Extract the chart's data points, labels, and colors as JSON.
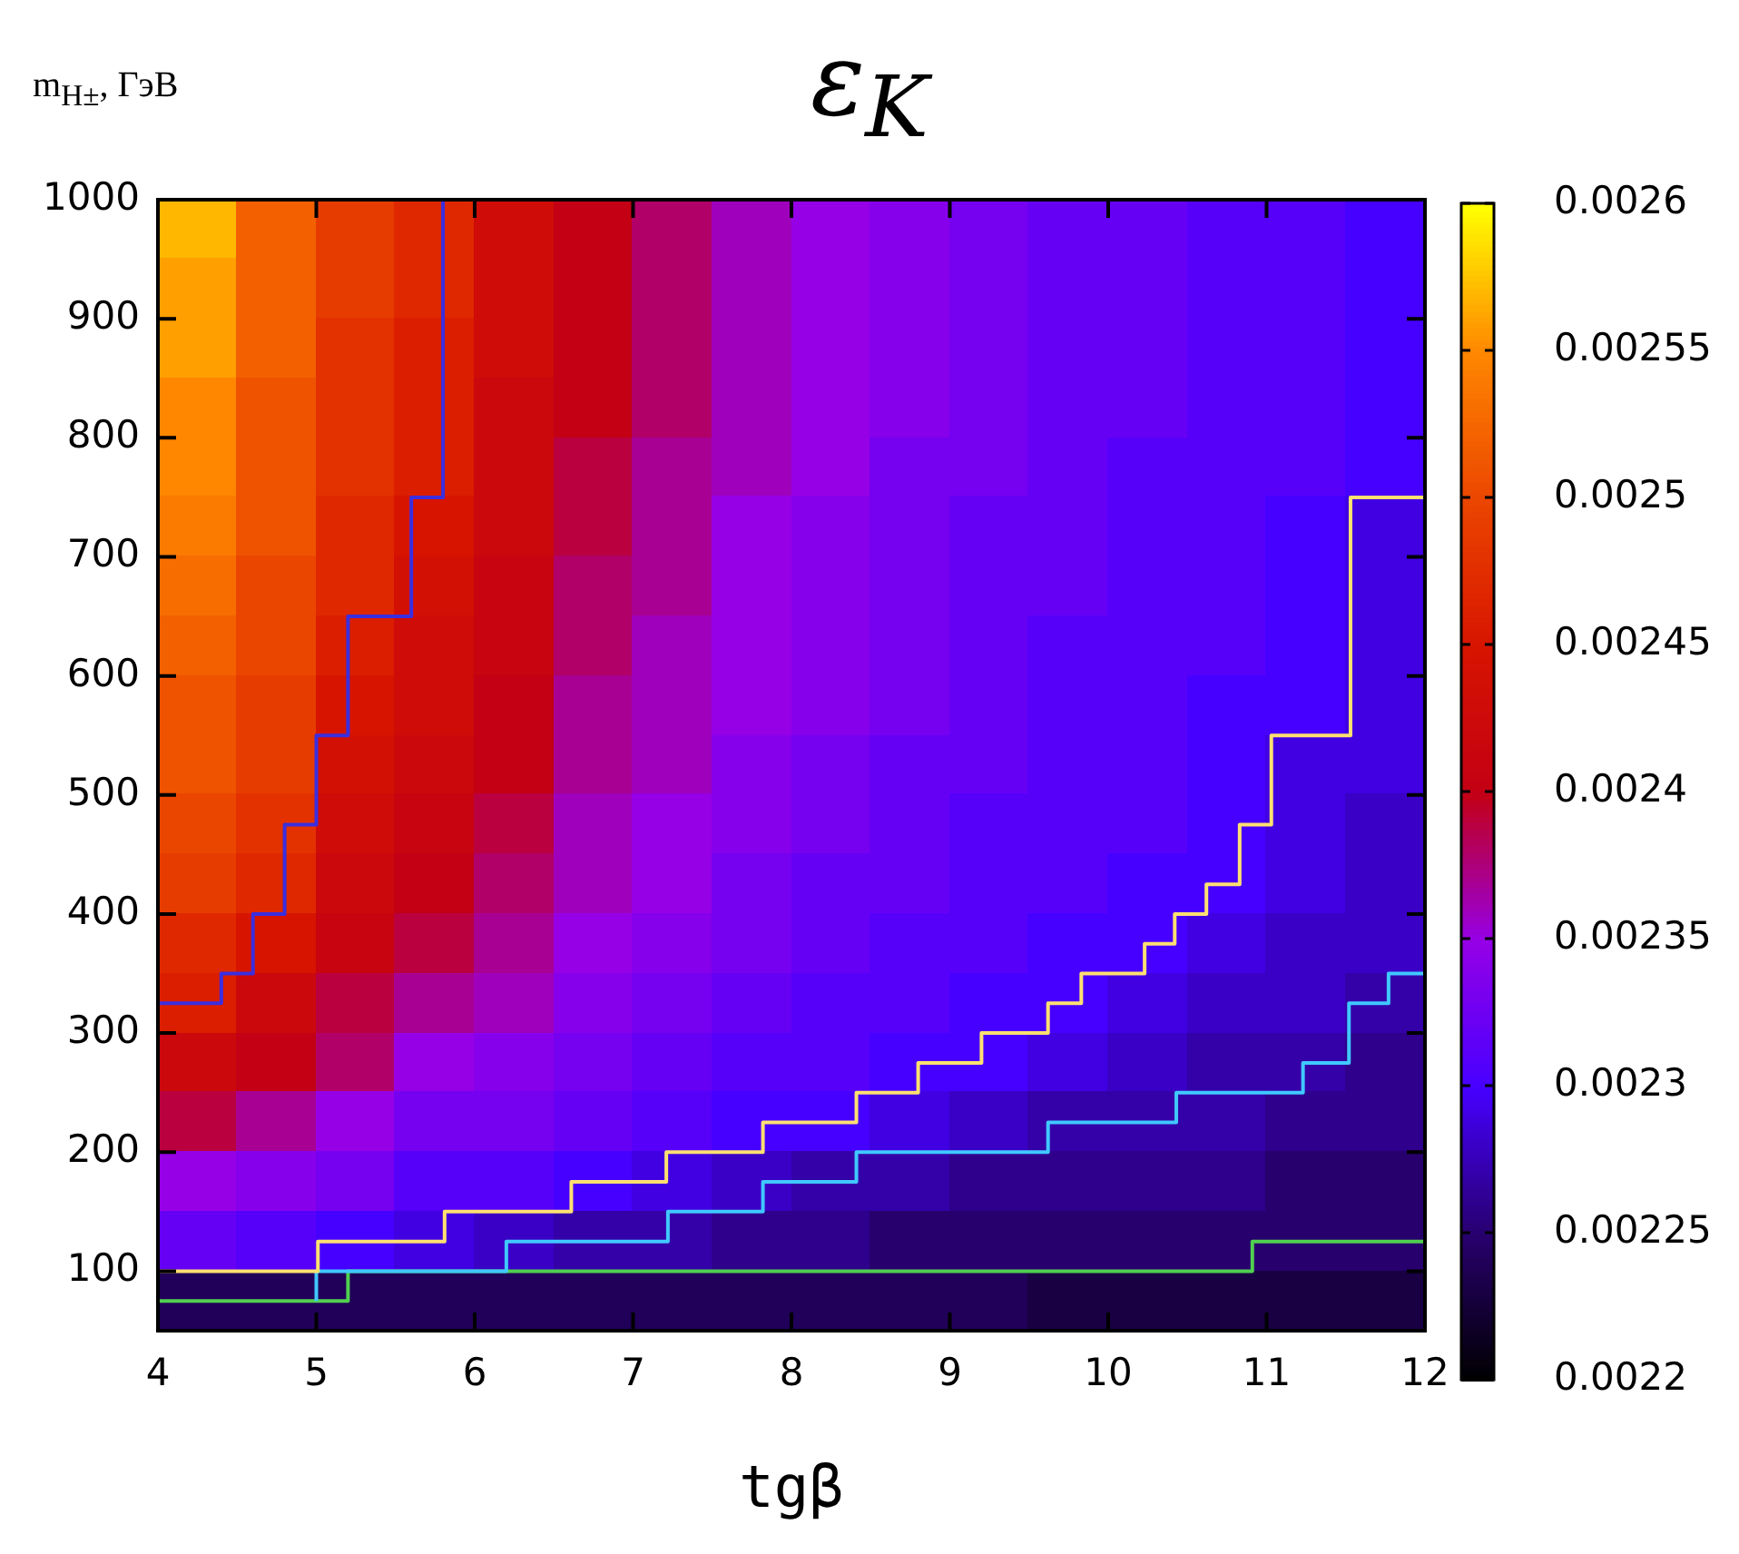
{
  "chart_data": {
    "type": "heatmap",
    "title": "ε$_{K}$",
    "xlabel": "tgβ",
    "ylabel": "m$_{H±}$, ГэВ",
    "xlim": [
      4,
      12
    ],
    "xticks": [
      4,
      5,
      6,
      7,
      8,
      9,
      10,
      11,
      12
    ],
    "ylim": [
      50,
      1000
    ],
    "yticks": [
      100,
      200,
      300,
      400,
      500,
      600,
      700,
      800,
      900,
      1000
    ],
    "clim": [
      0.0022,
      0.0026
    ],
    "cticks": [
      0.0022,
      0.00225,
      0.0023,
      0.00235,
      0.0024,
      0.00245,
      0.0025,
      0.00255,
      0.0026
    ],
    "x": [
      4.25,
      4.75,
      5.25,
      5.75,
      6.25,
      6.75,
      7.25,
      7.75,
      8.25,
      8.75,
      9.25,
      9.75,
      10.25,
      10.75,
      11.25,
      11.75
    ],
    "y": [
      975,
      925,
      875,
      825,
      775,
      725,
      675,
      625,
      575,
      525,
      475,
      425,
      375,
      325,
      275,
      225,
      175,
      125,
      75
    ],
    "cells": [
      [
        0.00257,
        0.00252,
        0.00249,
        0.00247,
        0.00243,
        0.0024,
        0.00238,
        0.00236,
        0.00235,
        0.00234,
        0.00233,
        0.00232,
        0.00232,
        0.00231,
        0.00231,
        0.0023
      ],
      [
        0.00256,
        0.00252,
        0.00249,
        0.00247,
        0.00243,
        0.0024,
        0.00238,
        0.00236,
        0.00235,
        0.00234,
        0.00233,
        0.00232,
        0.00232,
        0.00231,
        0.00231,
        0.0023
      ],
      [
        0.00256,
        0.00252,
        0.00248,
        0.00246,
        0.00243,
        0.0024,
        0.00238,
        0.00236,
        0.00235,
        0.00234,
        0.00233,
        0.00232,
        0.00232,
        0.00231,
        0.00231,
        0.0023
      ],
      [
        0.00255,
        0.00251,
        0.00248,
        0.00246,
        0.00242,
        0.0024,
        0.00238,
        0.00236,
        0.00235,
        0.00234,
        0.00233,
        0.00232,
        0.00232,
        0.00231,
        0.00231,
        0.0023
      ],
      [
        0.00255,
        0.00251,
        0.00248,
        0.00246,
        0.00242,
        0.00239,
        0.00237,
        0.00236,
        0.00235,
        0.00233,
        0.00233,
        0.00232,
        0.00231,
        0.00231,
        0.00231,
        0.0023
      ],
      [
        0.00254,
        0.00251,
        0.00247,
        0.00245,
        0.00242,
        0.00239,
        0.00237,
        0.00235,
        0.00234,
        0.00233,
        0.00232,
        0.00232,
        0.00231,
        0.00231,
        0.0023,
        0.00229
      ],
      [
        0.00253,
        0.0025,
        0.00247,
        0.00244,
        0.00241,
        0.00238,
        0.00237,
        0.00235,
        0.00234,
        0.00233,
        0.00232,
        0.00232,
        0.00231,
        0.00231,
        0.0023,
        0.00229
      ],
      [
        0.00252,
        0.0025,
        0.00246,
        0.00243,
        0.00241,
        0.00238,
        0.00236,
        0.00235,
        0.00234,
        0.00233,
        0.00232,
        0.00231,
        0.00231,
        0.00231,
        0.0023,
        0.00229
      ],
      [
        0.00251,
        0.00249,
        0.00245,
        0.00243,
        0.0024,
        0.00237,
        0.00236,
        0.00235,
        0.00234,
        0.00233,
        0.00232,
        0.00231,
        0.00231,
        0.0023,
        0.0023,
        0.00229
      ],
      [
        0.00251,
        0.00249,
        0.00244,
        0.00242,
        0.0024,
        0.00237,
        0.00236,
        0.00234,
        0.00233,
        0.00232,
        0.00232,
        0.00231,
        0.00231,
        0.0023,
        0.00229,
        0.00229
      ],
      [
        0.0025,
        0.00248,
        0.00243,
        0.00241,
        0.00239,
        0.00236,
        0.00235,
        0.00234,
        0.00233,
        0.00232,
        0.00231,
        0.00231,
        0.00231,
        0.0023,
        0.00229,
        0.00228
      ],
      [
        0.00249,
        0.00247,
        0.00242,
        0.0024,
        0.00238,
        0.00236,
        0.00235,
        0.00233,
        0.00232,
        0.00232,
        0.00231,
        0.00231,
        0.0023,
        0.0023,
        0.00229,
        0.00228
      ],
      [
        0.00247,
        0.00245,
        0.00241,
        0.00239,
        0.00237,
        0.00235,
        0.00234,
        0.00233,
        0.00232,
        0.00231,
        0.00231,
        0.0023,
        0.0023,
        0.00229,
        0.00228,
        0.00228
      ],
      [
        0.00246,
        0.00242,
        0.00239,
        0.00237,
        0.00236,
        0.00234,
        0.00233,
        0.00232,
        0.00231,
        0.00231,
        0.0023,
        0.0023,
        0.00229,
        0.00228,
        0.00228,
        0.00227
      ],
      [
        0.00242,
        0.0024,
        0.00238,
        0.00235,
        0.00234,
        0.00233,
        0.00232,
        0.00231,
        0.00231,
        0.0023,
        0.0023,
        0.00229,
        0.00228,
        0.00227,
        0.00227,
        0.00226
      ],
      [
        0.00239,
        0.00237,
        0.00235,
        0.00233,
        0.00233,
        0.00232,
        0.00231,
        0.0023,
        0.0023,
        0.00229,
        0.00228,
        0.00227,
        0.00227,
        0.00227,
        0.00226,
        0.00226
      ],
      [
        0.00235,
        0.00234,
        0.00233,
        0.00231,
        0.00231,
        0.0023,
        0.00229,
        0.00228,
        0.00227,
        0.00227,
        0.00226,
        0.00226,
        0.00226,
        0.00226,
        0.00225,
        0.00225
      ],
      [
        0.00232,
        0.00231,
        0.0023,
        0.00229,
        0.00228,
        0.00227,
        0.00227,
        0.00226,
        0.00226,
        0.00225,
        0.00225,
        0.00225,
        0.00225,
        0.00225,
        0.00225,
        0.00225
      ],
      [
        0.00224,
        0.00224,
        0.00224,
        0.00224,
        0.00224,
        0.00224,
        0.00224,
        0.00224,
        0.00224,
        0.00224,
        0.00224,
        0.00223,
        0.00223,
        0.00223,
        0.00223,
        0.00223
      ]
    ],
    "series": [
      {
        "type": "step",
        "color": "#3a2ee0",
        "x": [
          4,
          4.4,
          4.6,
          4.8,
          5.0,
          5.2,
          5.6,
          5.8
        ],
        "values": [
          325,
          350,
          400,
          475,
          550,
          650,
          750,
          1000
        ]
      },
      {
        "type": "step",
        "color": "#ffe070",
        "x": [
          4,
          5.01,
          5.81,
          6.61,
          7.21,
          7.82,
          8.41,
          8.8,
          9.2,
          9.62,
          9.83,
          10.23,
          10.42,
          10.62,
          10.83,
          11.03,
          11.53,
          12
        ],
        "values": [
          100,
          125,
          150,
          175,
          200,
          225,
          250,
          275,
          300,
          325,
          350,
          375,
          400,
          425,
          475,
          550,
          750,
          750
        ]
      },
      {
        "type": "step",
        "color": "#40c8ff",
        "x": [
          5.0,
          5.0,
          6.2,
          7.22,
          7.82,
          8.41,
          9.62,
          10.43,
          11.23,
          11.52,
          11.77,
          12
        ],
        "values": [
          75,
          100,
          125,
          150,
          175,
          200,
          225,
          250,
          275,
          325,
          350,
          350
        ]
      },
      {
        "type": "step",
        "color": "#50d050",
        "x": [
          4,
          5.2,
          10.91,
          12
        ],
        "values": [
          75,
          100,
          125,
          125
        ]
      }
    ]
  }
}
